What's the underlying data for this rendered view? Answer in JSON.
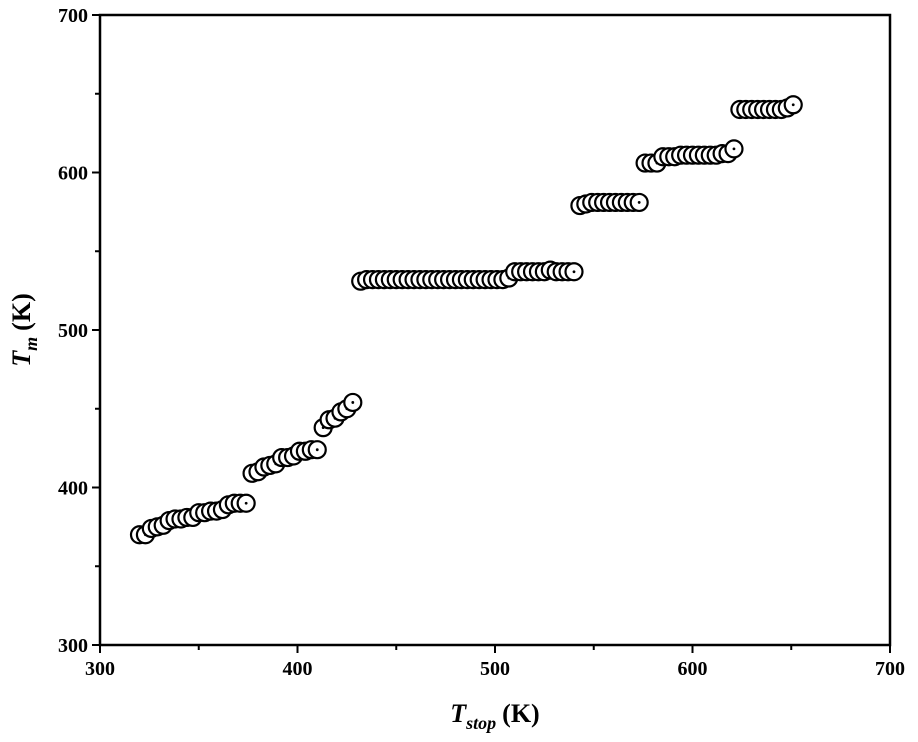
{
  "chart_data": {
    "type": "scatter",
    "title": "",
    "xlabel": {
      "main": "T",
      "sub": "stop",
      "unit": "(K)"
    },
    "ylabel": {
      "main": "T",
      "sub": "m",
      "unit": "(K)"
    },
    "xlim": [
      300,
      700
    ],
    "ylim": [
      300,
      700
    ],
    "xticks": [
      300,
      400,
      500,
      600,
      700
    ],
    "yticks": [
      300,
      400,
      500,
      600,
      700
    ],
    "x_minor_step": 50,
    "y_minor_step": 50,
    "marker": "open-circle-with-center-dot",
    "series": [
      {
        "name": "Tm",
        "x": [
          320,
          323,
          326,
          329,
          332,
          335,
          338,
          341,
          344,
          347,
          350,
          353,
          356,
          359,
          362,
          365,
          368,
          371,
          374,
          377,
          380,
          383,
          386,
          389,
          392,
          395,
          398,
          401,
          404,
          407,
          410,
          413,
          416,
          419,
          422,
          425,
          428,
          432,
          435,
          438,
          441,
          444,
          447,
          450,
          453,
          456,
          459,
          462,
          465,
          468,
          471,
          474,
          477,
          480,
          483,
          486,
          489,
          492,
          495,
          498,
          501,
          504,
          507,
          510,
          513,
          516,
          519,
          522,
          525,
          528,
          531,
          534,
          537,
          540,
          543,
          546,
          549,
          552,
          555,
          558,
          561,
          564,
          567,
          570,
          573,
          576,
          579,
          582,
          585,
          588,
          591,
          594,
          597,
          600,
          603,
          606,
          609,
          612,
          615,
          618,
          621,
          624,
          627,
          630,
          633,
          636,
          639,
          642,
          645,
          648,
          651
        ],
        "y": [
          370,
          370,
          374,
          375,
          376,
          379,
          380,
          380,
          381,
          381,
          384,
          384,
          385,
          385,
          386,
          389,
          390,
          390,
          390,
          409,
          410,
          413,
          414,
          415,
          419,
          419,
          420,
          423,
          423,
          424,
          424,
          438,
          443,
          444,
          448,
          450,
          454,
          531,
          532,
          532,
          532,
          532,
          532,
          532,
          532,
          532,
          532,
          532,
          532,
          532,
          532,
          532,
          532,
          532,
          532,
          532,
          532,
          532,
          532,
          532,
          532,
          532,
          533,
          537,
          537,
          537,
          537,
          537,
          537,
          538,
          537,
          537,
          537,
          537,
          579,
          580,
          581,
          581,
          581,
          581,
          581,
          581,
          581,
          581,
          581,
          606,
          606,
          606,
          610,
          610,
          610,
          611,
          611,
          611,
          611,
          611,
          611,
          611,
          612,
          612,
          615,
          640,
          640,
          640,
          640,
          640,
          640,
          640,
          640,
          641,
          643
        ]
      }
    ]
  }
}
